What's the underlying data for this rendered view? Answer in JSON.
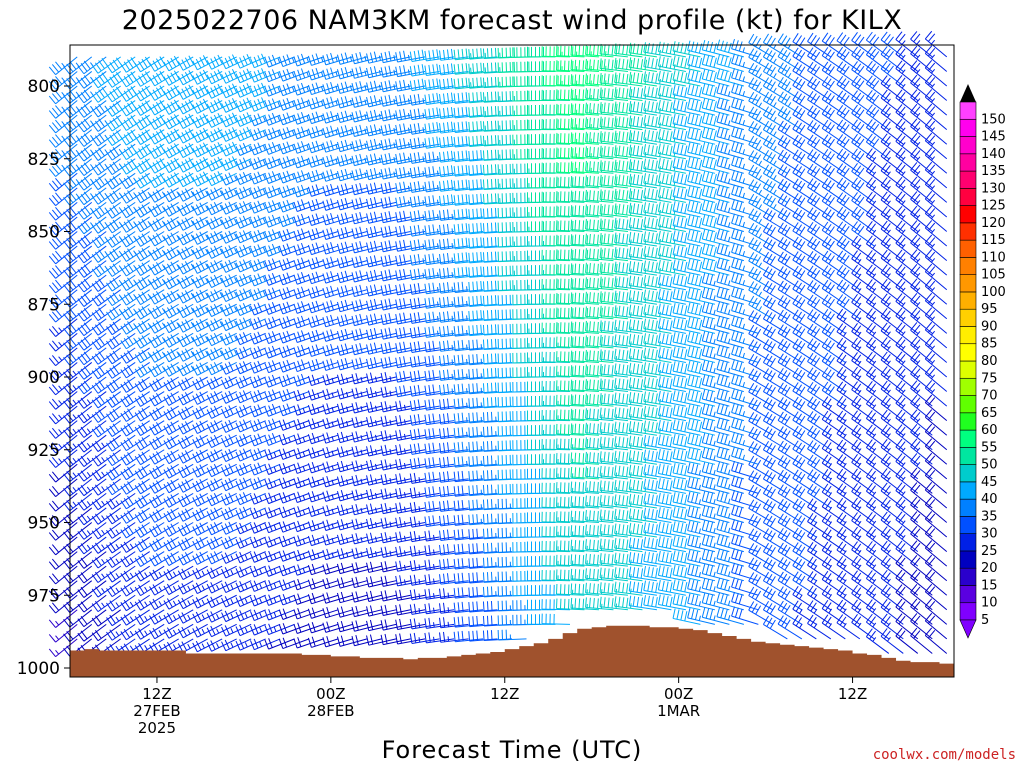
{
  "chart_data": {
    "type": "wind-profile-barbs",
    "title": "2025022706 NAM3KM forecast wind profile (kt) for KILX",
    "xlabel": "Forecast Time (UTC)",
    "ylabel": "",
    "y_scale": "pressure (inverted)",
    "ylim": [
      1003,
      780
    ],
    "y_ticks": [
      800,
      825,
      850,
      875,
      900,
      925,
      950,
      975,
      1000
    ],
    "xlim": [
      6,
      67
    ],
    "x_ticks": [
      {
        "h": 12,
        "lines": [
          "12Z",
          "27FEB",
          "2025"
        ]
      },
      {
        "h": 24,
        "lines": [
          "00Z",
          "28FEB"
        ]
      },
      {
        "h": 36,
        "lines": [
          "12Z"
        ]
      },
      {
        "h": 48,
        "lines": [
          "00Z",
          "1MAR"
        ]
      },
      {
        "h": 60,
        "lines": [
          "12Z"
        ]
      }
    ],
    "terrain": {
      "note": "surface pressure (hPa) masked in brown",
      "h": [
        6,
        7,
        8,
        10,
        12,
        14,
        16,
        18,
        20,
        22,
        24,
        26,
        28,
        29,
        30,
        32,
        33,
        34,
        35,
        36,
        37,
        38,
        39,
        40,
        41,
        42,
        43,
        44,
        46,
        48,
        49,
        50,
        51,
        52,
        53,
        54,
        55,
        56,
        57,
        58,
        59,
        60,
        61,
        62,
        63,
        64,
        66,
        67
      ],
      "p": [
        994,
        993.5,
        994,
        994,
        994,
        995,
        995,
        995,
        995,
        995.5,
        996,
        996.5,
        996.5,
        997,
        996.5,
        996,
        995.5,
        995,
        994.5,
        993.5,
        992.5,
        991.5,
        990,
        988,
        986.5,
        986,
        985.5,
        985.5,
        986,
        986.5,
        987,
        988,
        989,
        990,
        991,
        991.5,
        992,
        992.5,
        993,
        993.5,
        994,
        995,
        995.5,
        996.5,
        997.5,
        998,
        998.5,
        998.5
      ]
    },
    "wind_speed_kt_approx": {
      "h": [
        6,
        12,
        18,
        24,
        30,
        36,
        42,
        48,
        54,
        60,
        67
      ],
      "low_level": [
        15,
        25,
        25,
        20,
        20,
        30,
        45,
        40,
        30,
        25,
        20
      ],
      "mid_level": [
        35,
        40,
        40,
        35,
        35,
        45,
        55,
        45,
        35,
        30,
        25
      ]
    },
    "colorbar": {
      "title": "",
      "levels": [
        5,
        10,
        15,
        20,
        25,
        30,
        35,
        40,
        45,
        50,
        55,
        60,
        65,
        70,
        75,
        80,
        85,
        90,
        95,
        100,
        105,
        110,
        115,
        120,
        125,
        130,
        135,
        140,
        145,
        150
      ],
      "colors": [
        "#8000ff",
        "#5a00e0",
        "#2a00cc",
        "#0000c0",
        "#0020e6",
        "#0050ff",
        "#0080ff",
        "#00aaff",
        "#00cccc",
        "#00e6a0",
        "#00ff80",
        "#20ff20",
        "#60ff00",
        "#a0ff00",
        "#ddff00",
        "#ffff00",
        "#ffee00",
        "#ffd000",
        "#ffb000",
        "#ff9800",
        "#ff8000",
        "#ff6000",
        "#ff3000",
        "#ff0000",
        "#ff0040",
        "#ff0070",
        "#ff00a0",
        "#ff00cc",
        "#ff00ee",
        "#ff40ff"
      ]
    },
    "colors": {
      "terrain": "#a0522d",
      "frame": "#000000"
    }
  },
  "credit": "coolwx.com/models"
}
